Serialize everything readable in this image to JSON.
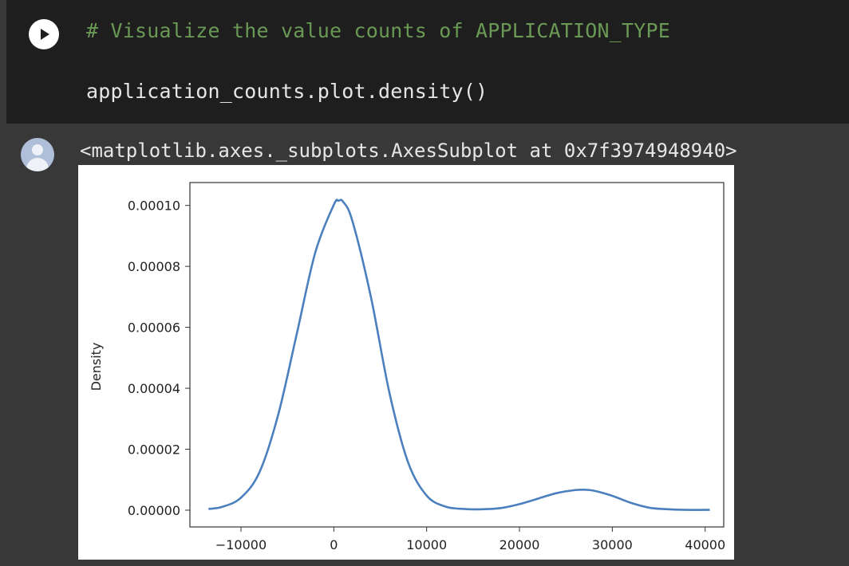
{
  "code_cell": {
    "comment": "# Visualize the value counts of APPLICATION_TYPE",
    "code": "application_counts.plot.density()"
  },
  "output": {
    "repr_text": "<matplotlib.axes._subplots.AxesSubplot at 0x7f3974948940>"
  },
  "colors": {
    "line": "#4c7fbe",
    "cell_bg": "#1e1e1e",
    "output_bg": "#383838",
    "comment": "#6a9955"
  },
  "chart_data": {
    "type": "line",
    "title": "",
    "xlabel": "",
    "ylabel": "Density",
    "xlim": [
      -15500,
      42000
    ],
    "ylim": [
      -5.5e-06,
      0.0001075
    ],
    "x_ticks": [
      -10000,
      0,
      10000,
      20000,
      30000,
      40000
    ],
    "x_tick_labels": [
      "−10000",
      "0",
      "10000",
      "20000",
      "30000",
      "40000"
    ],
    "y_ticks": [
      0,
      2e-05,
      4e-05,
      6e-05,
      8e-05,
      0.0001
    ],
    "y_tick_labels": [
      "0.00000",
      "0.00002",
      "0.00004",
      "0.00006",
      "0.00008",
      "0.00010"
    ],
    "grid": false,
    "series": [
      {
        "x": [
          -13500,
          -12000,
          -10000,
          -8000,
          -6000,
          -4000,
          -2000,
          0,
          500,
          1000,
          2000,
          4000,
          6000,
          8000,
          10000,
          12000,
          14000,
          16000,
          18000,
          20000,
          22000,
          24000,
          26000,
          27000,
          28000,
          30000,
          32000,
          34000,
          36000,
          38000,
          40500
        ],
        "y": [
          4e-07,
          1.1e-06,
          4.1e-06,
          1.25e-05,
          3.12e-05,
          5.77e-05,
          8.45e-05,
          0.0001002,
          0.0001015,
          0.0001012,
          9.49e-05,
          6.99e-05,
          3.84e-05,
          1.57e-05,
          4.8e-06,
          1.2e-06,
          4e-07,
          3e-07,
          7e-07,
          2e-06,
          3.8e-06,
          5.6e-06,
          6.6e-06,
          6.7e-06,
          6.4e-06,
          4.7e-06,
          2.4e-06,
          8e-07,
          3e-07,
          1e-07,
          1e-07
        ]
      }
    ]
  }
}
